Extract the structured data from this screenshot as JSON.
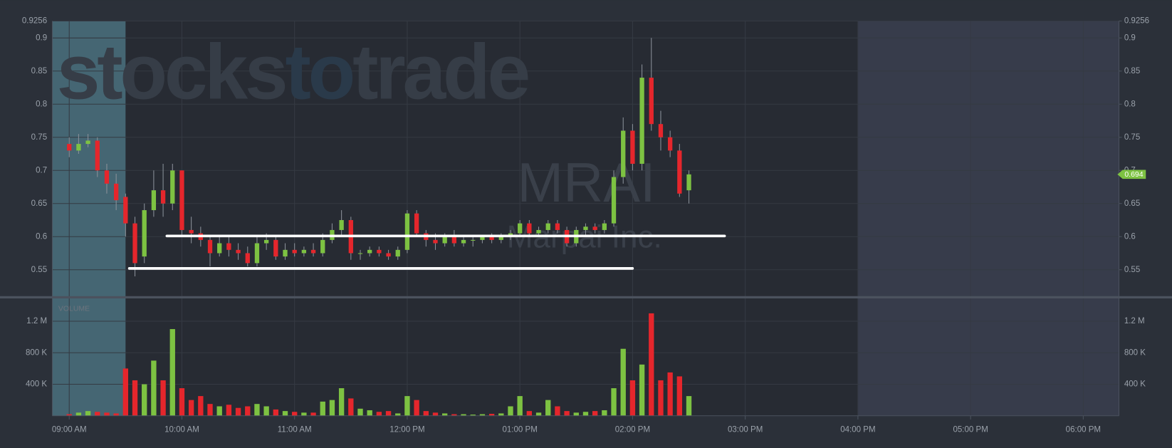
{
  "chart_data": {
    "type": "candlestick",
    "symbol": "MRAI",
    "company": "Marpai Inc.",
    "watermark": [
      "stocks",
      "to",
      "trade"
    ],
    "volume_label": "VOLUME",
    "x": [
      "09:00 AM",
      "09:05 AM",
      "09:10 AM",
      "09:15 AM",
      "09:20 AM",
      "09:25 AM",
      "09:30 AM",
      "09:35 AM",
      "09:40 AM",
      "09:45 AM",
      "09:50 AM",
      "09:55 AM",
      "10:00 AM",
      "10:05 AM",
      "10:10 AM",
      "10:15 AM",
      "10:20 AM",
      "10:25 AM",
      "10:30 AM",
      "10:35 AM",
      "10:40 AM",
      "10:45 AM",
      "10:50 AM",
      "10:55 AM",
      "11:00 AM",
      "11:05 AM",
      "11:10 AM",
      "11:15 AM",
      "11:20 AM",
      "11:25 AM",
      "11:30 AM",
      "11:35 AM",
      "11:40 AM",
      "11:45 AM",
      "11:50 AM",
      "11:55 AM",
      "12:00 PM",
      "12:05 PM",
      "12:10 PM",
      "12:15 PM",
      "12:20 PM",
      "12:25 PM",
      "12:30 PM",
      "12:35 PM",
      "12:40 PM",
      "12:45 PM",
      "12:50 PM",
      "12:55 PM",
      "01:00 PM",
      "01:05 PM",
      "01:10 PM",
      "01:15 PM",
      "01:20 PM",
      "01:25 PM",
      "01:30 PM",
      "01:35 PM",
      "01:40 PM",
      "01:45 PM",
      "01:50 PM",
      "01:55 PM",
      "02:00 PM",
      "02:05 PM",
      "02:10 PM",
      "02:15 PM",
      "02:20 PM",
      "02:25 PM",
      "02:30 PM"
    ],
    "open": [
      0.74,
      0.73,
      0.74,
      0.745,
      0.7,
      0.68,
      0.66,
      0.62,
      0.57,
      0.64,
      0.67,
      0.65,
      0.7,
      0.61,
      0.605,
      0.595,
      0.575,
      0.59,
      0.58,
      0.575,
      0.56,
      0.59,
      0.595,
      0.57,
      0.58,
      0.575,
      0.58,
      0.575,
      0.595,
      0.61,
      0.625,
      0.575,
      0.575,
      0.58,
      0.575,
      0.57,
      0.58,
      0.635,
      0.605,
      0.595,
      0.59,
      0.6,
      0.59,
      0.595,
      0.595,
      0.6,
      0.595,
      0.6,
      0.605,
      0.62,
      0.605,
      0.61,
      0.62,
      0.61,
      0.59,
      0.61,
      0.615,
      0.61,
      0.62,
      0.69,
      0.76,
      0.71,
      0.84,
      0.77,
      0.75,
      0.73,
      0.67
    ],
    "high": [
      0.75,
      0.755,
      0.755,
      0.75,
      0.71,
      0.695,
      0.665,
      0.63,
      0.65,
      0.7,
      0.71,
      0.71,
      0.7,
      0.63,
      0.615,
      0.6,
      0.6,
      0.6,
      0.59,
      0.585,
      0.6,
      0.605,
      0.6,
      0.59,
      0.59,
      0.585,
      0.59,
      0.605,
      0.62,
      0.64,
      0.63,
      0.58,
      0.585,
      0.585,
      0.58,
      0.585,
      0.64,
      0.64,
      0.61,
      0.605,
      0.605,
      0.61,
      0.6,
      0.6,
      0.6,
      0.605,
      0.605,
      0.61,
      0.625,
      0.625,
      0.615,
      0.625,
      0.625,
      0.615,
      0.615,
      0.62,
      0.62,
      0.625,
      0.7,
      0.78,
      0.77,
      0.86,
      0.9,
      0.79,
      0.76,
      0.74,
      0.7
    ],
    "low": [
      0.72,
      0.725,
      0.735,
      0.69,
      0.665,
      0.64,
      0.6,
      0.54,
      0.56,
      0.63,
      0.63,
      0.64,
      0.6,
      0.59,
      0.585,
      0.555,
      0.57,
      0.57,
      0.565,
      0.555,
      0.555,
      0.58,
      0.565,
      0.565,
      0.57,
      0.57,
      0.57,
      0.57,
      0.59,
      0.6,
      0.565,
      0.565,
      0.57,
      0.57,
      0.565,
      0.565,
      0.575,
      0.6,
      0.585,
      0.58,
      0.585,
      0.585,
      0.585,
      0.585,
      0.59,
      0.59,
      0.59,
      0.595,
      0.6,
      0.6,
      0.6,
      0.605,
      0.605,
      0.585,
      0.585,
      0.6,
      0.605,
      0.605,
      0.615,
      0.68,
      0.7,
      0.7,
      0.76,
      0.73,
      0.72,
      0.66,
      0.65
    ],
    "close": [
      0.73,
      0.74,
      0.745,
      0.7,
      0.68,
      0.655,
      0.62,
      0.56,
      0.64,
      0.67,
      0.65,
      0.7,
      0.61,
      0.605,
      0.595,
      0.575,
      0.59,
      0.58,
      0.575,
      0.56,
      0.59,
      0.595,
      0.57,
      0.58,
      0.575,
      0.58,
      0.575,
      0.595,
      0.61,
      0.625,
      0.575,
      0.575,
      0.58,
      0.575,
      0.57,
      0.58,
      0.635,
      0.605,
      0.595,
      0.59,
      0.6,
      0.59,
      0.595,
      0.595,
      0.6,
      0.595,
      0.6,
      0.605,
      0.62,
      0.605,
      0.61,
      0.62,
      0.61,
      0.59,
      0.61,
      0.615,
      0.61,
      0.62,
      0.69,
      0.76,
      0.71,
      0.84,
      0.77,
      0.75,
      0.73,
      0.665,
      0.694
    ],
    "volume": [
      20000,
      40000,
      60000,
      50000,
      40000,
      30000,
      600000,
      450000,
      400000,
      700000,
      450000,
      1100000,
      350000,
      200000,
      250000,
      150000,
      120000,
      140000,
      100000,
      120000,
      150000,
      120000,
      80000,
      60000,
      50000,
      40000,
      40000,
      180000,
      200000,
      350000,
      220000,
      90000,
      70000,
      50000,
      60000,
      30000,
      250000,
      200000,
      60000,
      40000,
      30000,
      20000,
      20000,
      15000,
      20000,
      25000,
      30000,
      120000,
      250000,
      60000,
      40000,
      200000,
      120000,
      60000,
      40000,
      50000,
      60000,
      70000,
      350000,
      850000,
      450000,
      650000,
      1300000,
      450000,
      550000,
      500000,
      250000
    ],
    "up_color": "#7dc242",
    "down_color": "#e5262c",
    "xlim": [
      "08:51 AM",
      "06:19 PM"
    ],
    "xticks": [
      "09:00 AM",
      "10:00 AM",
      "11:00 AM",
      "12:00 PM",
      "01:00 PM",
      "02:00 PM",
      "03:00 PM",
      "04:00 PM",
      "05:00 PM",
      "06:00 PM"
    ],
    "ylim": [
      0.509,
      0.9256
    ],
    "yticks": [
      0.55,
      0.6,
      0.65,
      0.7,
      0.75,
      0.8,
      0.85,
      0.9,
      0.9256
    ],
    "volume_ylim": [
      0,
      1480000
    ],
    "volume_yticks": [
      {
        "value": 400000,
        "label": "400 K"
      },
      {
        "value": 800000,
        "label": "800 K"
      },
      {
        "value": 1200000,
        "label": "1.2 M"
      }
    ],
    "grid": true,
    "shaded": [
      {
        "x": [
          "08:51 AM",
          "09:30 AM"
        ],
        "color": "#456673"
      },
      {
        "x": [
          "04:00 PM",
          "06:19 PM"
        ],
        "color": "#373c4b"
      }
    ],
    "lines": [
      {
        "y": 0.601,
        "x": [
          "09:52 AM",
          "02:49 PM"
        ],
        "color": "#ffffff"
      },
      {
        "y": 0.552,
        "x": [
          "09:32 AM",
          "02:00 PM"
        ],
        "color": "#ffffff"
      }
    ]
  }
}
